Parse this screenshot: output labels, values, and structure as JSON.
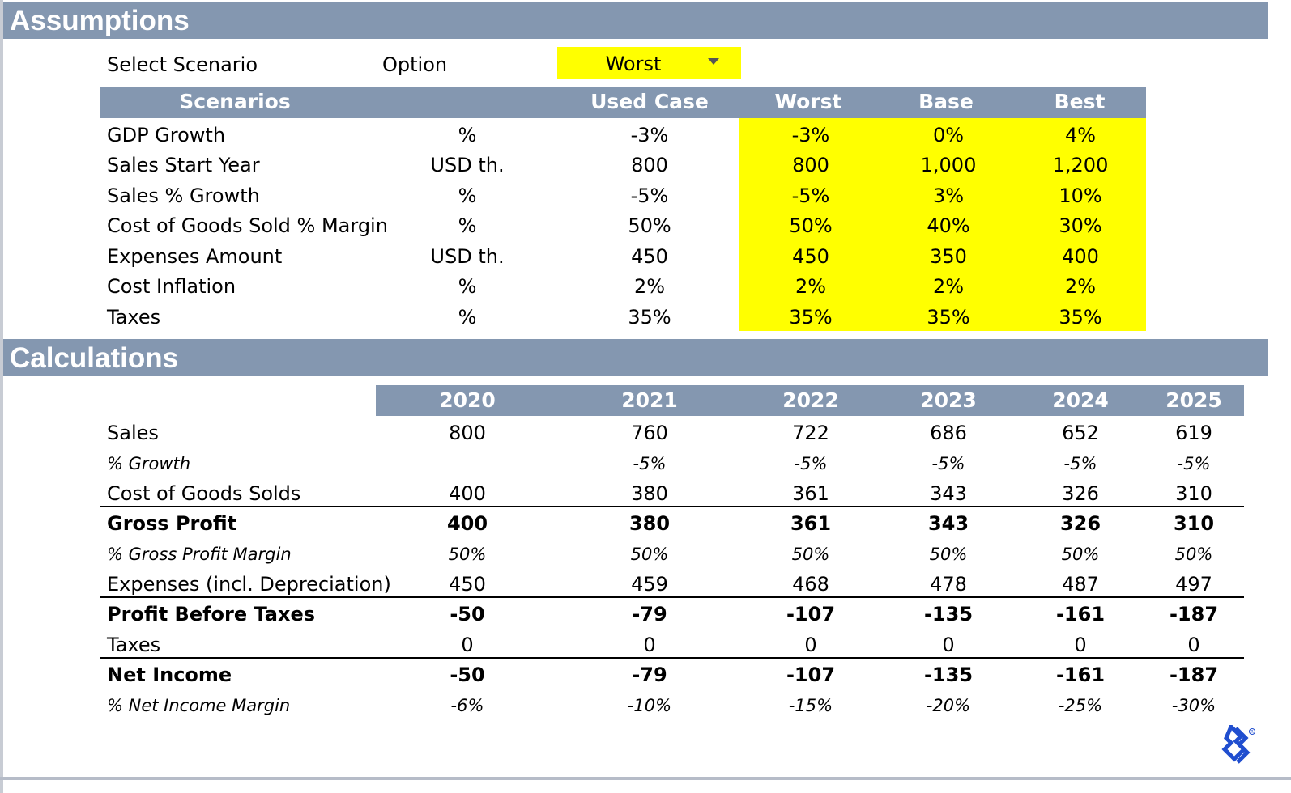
{
  "assumptions": {
    "title": "Assumptions",
    "select_label": "Select Scenario",
    "option_label": "Option",
    "selected_scenario": "Worst",
    "headers": {
      "scenarios": "Scenarios",
      "used_case": "Used Case",
      "worst": "Worst",
      "base": "Base",
      "best": "Best"
    },
    "rows": [
      {
        "label": "GDP Growth",
        "unit": "%",
        "used": "-3%",
        "worst": "-3%",
        "base": "0%",
        "best": "4%"
      },
      {
        "label": "Sales Start Year",
        "unit": "USD th.",
        "used": "800",
        "worst": "800",
        "base": "1,000",
        "best": "1,200"
      },
      {
        "label": "Sales % Growth",
        "unit": "%",
        "used": "-5%",
        "worst": "-5%",
        "base": "3%",
        "best": "10%"
      },
      {
        "label": "Cost of Goods Sold % Margin",
        "unit": "%",
        "used": "50%",
        "worst": "50%",
        "base": "40%",
        "best": "30%"
      },
      {
        "label": "Expenses Amount",
        "unit": "USD th.",
        "used": "450",
        "worst": "450",
        "base": "350",
        "best": "400"
      },
      {
        "label": "Cost Inflation",
        "unit": "%",
        "used": "2%",
        "worst": "2%",
        "base": "2%",
        "best": "2%"
      },
      {
        "label": "Taxes",
        "unit": "%",
        "used": "35%",
        "worst": "35%",
        "base": "35%",
        "best": "35%"
      }
    ]
  },
  "calculations": {
    "title": "Calculations",
    "years": [
      "2020",
      "2021",
      "2022",
      "2023",
      "2024",
      "2025"
    ],
    "rows": [
      {
        "label": "Sales",
        "values": [
          "800",
          "760",
          "722",
          "686",
          "652",
          "619"
        ]
      },
      {
        "label": "% Growth",
        "values": [
          "",
          "-5%",
          "-5%",
          "-5%",
          "-5%",
          "-5%"
        ]
      },
      {
        "label": "Cost of Goods Solds",
        "values": [
          "400",
          "380",
          "361",
          "343",
          "326",
          "310"
        ]
      },
      {
        "label": "Gross Profit",
        "values": [
          "400",
          "380",
          "361",
          "343",
          "326",
          "310"
        ]
      },
      {
        "label": "% Gross Profit Margin",
        "values": [
          "50%",
          "50%",
          "50%",
          "50%",
          "50%",
          "50%"
        ]
      },
      {
        "label": "Expenses (incl. Depreciation)",
        "values": [
          "450",
          "459",
          "468",
          "478",
          "487",
          "497"
        ]
      },
      {
        "label": "Profit Before Taxes",
        "values": [
          "-50",
          "-79",
          "-107",
          "-135",
          "-161",
          "-187"
        ]
      },
      {
        "label": "Taxes",
        "values": [
          "0",
          "0",
          "0",
          "0",
          "0",
          "0"
        ]
      },
      {
        "label": "Net Income",
        "values": [
          "-50",
          "-79",
          "-107",
          "-135",
          "-161",
          "-187"
        ]
      },
      {
        "label": "% Net Income Margin",
        "values": [
          "-6%",
          "-10%",
          "-15%",
          "-20%",
          "-25%",
          "-30%"
        ]
      }
    ]
  },
  "colors": {
    "header": "#8497b0",
    "highlight": "#ffff00",
    "logo": "#204ecf"
  },
  "icons": {
    "logo": "toptal-logo-icon"
  }
}
